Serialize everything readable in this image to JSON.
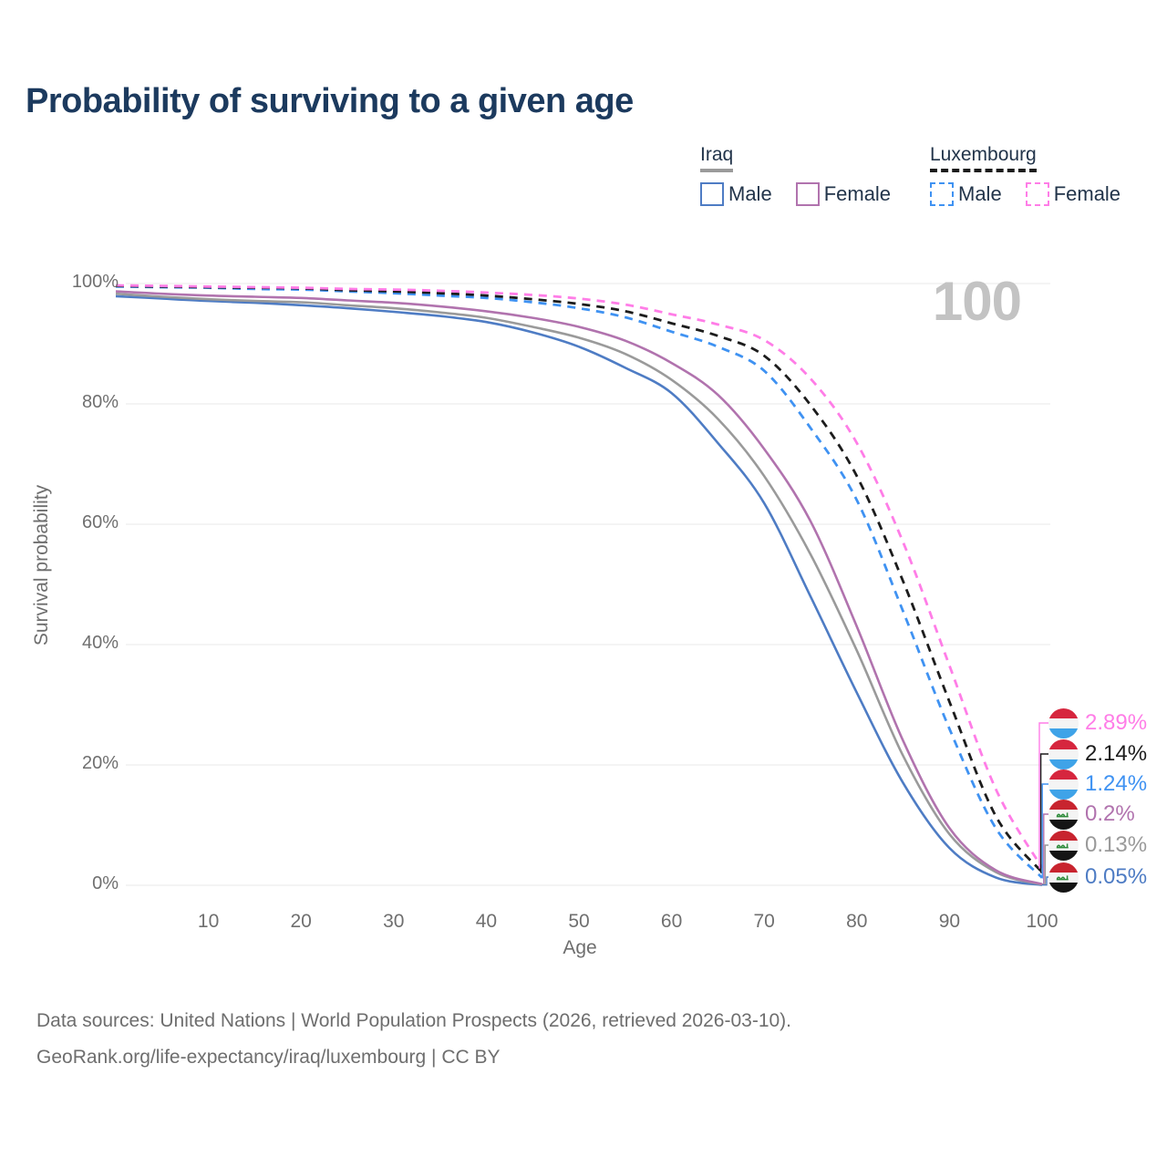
{
  "title": "Probability of surviving to a given age",
  "watermark_age": "100",
  "legend": {
    "groups": [
      {
        "label": "Iraq",
        "underline_style": "solid",
        "underline_color": "#9a9a9a",
        "items": [
          {
            "label": "Male",
            "color": "#4e7cc4",
            "dashed": false
          },
          {
            "label": "Female",
            "color": "#b173ae",
            "dashed": false
          }
        ]
      },
      {
        "label": "Luxembourg",
        "underline_style": "dashed",
        "underline_color": "#1c1c1c",
        "items": [
          {
            "label": "Male",
            "color": "#3f92f2",
            "dashed": true
          },
          {
            "label": "Female",
            "color": "#ff7de7",
            "dashed": true
          }
        ]
      }
    ]
  },
  "axes": {
    "x": {
      "label": "Age",
      "tick_labels": [
        "10",
        "20",
        "30",
        "40",
        "50",
        "60",
        "70",
        "80",
        "90",
        "100"
      ],
      "tick_values": [
        10,
        20,
        30,
        40,
        50,
        60,
        70,
        80,
        90,
        100
      ]
    },
    "y": {
      "label": "Survival probability",
      "tick_labels": [
        "100%",
        "80%",
        "60%",
        "40%",
        "20%",
        "0%"
      ],
      "tick_values": [
        100,
        80,
        60,
        40,
        20,
        0
      ]
    }
  },
  "chart_data": {
    "type": "line",
    "title": "Probability of surviving to a given age",
    "xlabel": "Age",
    "ylabel": "Survival probability",
    "xlim": [
      0,
      100
    ],
    "ylim": [
      0,
      100
    ],
    "grid": true,
    "legend_position": "top-right",
    "x": [
      0,
      5,
      10,
      15,
      20,
      25,
      30,
      35,
      40,
      45,
      50,
      55,
      60,
      65,
      70,
      75,
      80,
      85,
      90,
      95,
      100
    ],
    "series": [
      {
        "name": "Iraq Male",
        "country": "Iraq",
        "sex": "Male",
        "color": "#4e7cc4",
        "dashed": false,
        "values": [
          97.9,
          97.5,
          97.1,
          96.8,
          96.4,
          95.9,
          95.3,
          94.6,
          93.6,
          91.9,
          89.5,
          86.0,
          81.8,
          73.5,
          63.5,
          48.0,
          32.0,
          17.0,
          6.2,
          1.3,
          0.05
        ],
        "end_label": "0.05%"
      },
      {
        "name": "Iraq Both sexes",
        "country": "Iraq",
        "sex": "Both",
        "color": "#9a9a9a",
        "dashed": false,
        "values": [
          98.3,
          97.8,
          97.4,
          97.1,
          96.9,
          96.4,
          95.9,
          95.2,
          94.3,
          92.8,
          91.0,
          88.3,
          84.0,
          77.5,
          68.0,
          55.0,
          39.0,
          21.5,
          8.5,
          2.2,
          0.13
        ],
        "end_label": "0.13%"
      },
      {
        "name": "Iraq Female",
        "country": "Iraq",
        "sex": "Female",
        "color": "#b173ae",
        "dashed": false,
        "values": [
          98.7,
          98.3,
          98.0,
          97.8,
          97.6,
          97.2,
          96.8,
          96.2,
          95.4,
          94.3,
          92.8,
          90.5,
          86.8,
          81.5,
          72.5,
          60.5,
          43.0,
          24.0,
          9.5,
          2.5,
          0.2
        ],
        "end_label": "0.2%"
      },
      {
        "name": "Luxembourg Male",
        "country": "Luxembourg",
        "sex": "Male",
        "color": "#3f92f2",
        "dashed": true,
        "values": [
          99.5,
          99.4,
          99.3,
          99.1,
          99.0,
          98.7,
          98.4,
          98.0,
          97.6,
          96.9,
          95.9,
          94.4,
          92.0,
          89.5,
          85.5,
          76.0,
          64.0,
          45.5,
          26.0,
          9.5,
          1.24
        ],
        "end_label": "1.24%"
      },
      {
        "name": "Luxembourg Both sexes",
        "country": "Luxembourg",
        "sex": "Both",
        "color": "#1c1c1c",
        "dashed": true,
        "values": [
          99.6,
          99.5,
          99.4,
          99.3,
          99.2,
          98.9,
          98.7,
          98.4,
          98.0,
          97.4,
          96.6,
          95.4,
          93.4,
          91.3,
          88.0,
          79.8,
          68.0,
          50.5,
          30.5,
          11.5,
          2.14
        ],
        "end_label": "2.14%"
      },
      {
        "name": "Luxembourg Female",
        "country": "Luxembourg",
        "sex": "Female",
        "color": "#ff7de7",
        "dashed": true,
        "values": [
          99.7,
          99.6,
          99.5,
          99.4,
          99.3,
          99.1,
          99.0,
          98.8,
          98.5,
          98.1,
          97.5,
          96.5,
          94.9,
          93.2,
          90.6,
          84.2,
          73.5,
          57.0,
          36.5,
          16.0,
          2.89
        ],
        "end_label": "2.89%"
      }
    ],
    "end_labels": [
      {
        "value": "2.89%",
        "color": "#ff7de7",
        "flag": "luxembourg"
      },
      {
        "value": "2.14%",
        "color": "#1c1c1c",
        "flag": "luxembourg"
      },
      {
        "value": "1.24%",
        "color": "#3f92f2",
        "flag": "luxembourg"
      },
      {
        "value": "0.2%",
        "color": "#b173ae",
        "flag": "iraq"
      },
      {
        "value": "0.13%",
        "color": "#9a9a9a",
        "flag": "iraq"
      },
      {
        "value": "0.05%",
        "color": "#4e7cc4",
        "flag": "iraq"
      }
    ]
  },
  "footer": {
    "line1": "Data sources: United Nations | World Population Prospects (2026, retrieved 2026-03-10).",
    "line2": "GeoRank.org/life-expectancy/iraq/luxembourg | CC BY"
  }
}
